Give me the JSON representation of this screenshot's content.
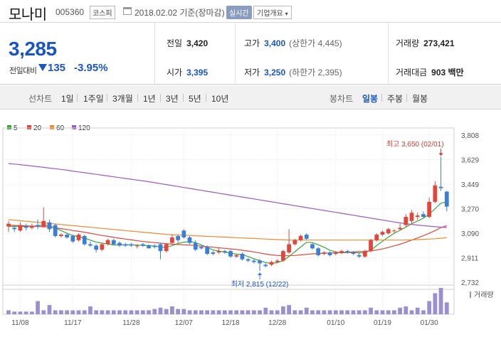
{
  "header": {
    "name": "모나미",
    "code": "005360",
    "market": "코스피",
    "date_text": "2018.02.02 기준(장마감)",
    "realtime_label": "실시간",
    "overview_label": "기업개요"
  },
  "price": {
    "current": "3,285",
    "change_label": "전일대비",
    "change_value": "135",
    "change_pct": "-3.95%"
  },
  "stats": {
    "prev_label": "전일",
    "prev_value": "3,420",
    "high_label": "고가",
    "high_value": "3,400",
    "upper_limit": "(상한가 4,445)",
    "volume_label": "거래량",
    "volume_value": "273,421",
    "open_label": "시가",
    "open_value": "3,395",
    "low_label": "저가",
    "low_value": "3,250",
    "lower_limit": "(하한가 2,395)",
    "amount_label": "거래대금",
    "amount_value": "903 백만"
  },
  "tabs": {
    "line_chart": "선차트",
    "periods": [
      "1일",
      "1주일",
      "3개월",
      "1년",
      "3년",
      "5년",
      "10년"
    ],
    "candle_chart": "봉차트",
    "candle_periods": [
      "일봉",
      "주봉",
      "월봉"
    ],
    "active_candle": "일봉"
  },
  "legend": [
    {
      "label": "5",
      "color": "#3aa53a"
    },
    {
      "label": "20",
      "color": "#e0463c"
    },
    {
      "label": "60",
      "color": "#f08a30"
    },
    {
      "label": "120",
      "color": "#9b59c9"
    }
  ],
  "chart_data": {
    "type": "candlestick",
    "yticks": [
      "3,808",
      "3,629",
      "3,449",
      "3,270",
      "3,090",
      "2,911",
      "2,732"
    ],
    "ylim": [
      2732,
      3808
    ],
    "xticks": [
      "11/08",
      "11/17",
      "11/28",
      "12/07",
      "12/18",
      "12/28",
      "01/10",
      "01/19",
      "01/30"
    ],
    "high_annotation": "최고 3,650 (02/01)",
    "low_annotation": "최저 2,815 (12/22)",
    "volume_label": "거래량",
    "up_color": "#e0463c",
    "down_color": "#3a7fd5",
    "candles": [
      [
        3140,
        3160,
        3180,
        3100
      ],
      [
        3130,
        3120,
        3150,
        3100
      ],
      [
        3110,
        3150,
        3170,
        3100
      ],
      [
        3140,
        3130,
        3160,
        3110
      ],
      [
        3130,
        3145,
        3160,
        3120
      ],
      [
        3150,
        3140,
        3190,
        3120
      ],
      [
        3140,
        3180,
        3280,
        3130
      ],
      [
        3170,
        3120,
        3190,
        3100
      ],
      [
        3150,
        3070,
        3160,
        3060
      ],
      [
        3070,
        3080,
        3090,
        3060
      ],
      [
        3080,
        3060,
        3090,
        3050
      ],
      [
        3070,
        3030,
        3080,
        3020
      ],
      [
        3040,
        3080,
        3090,
        3030
      ],
      [
        3070,
        3010,
        3080,
        3000
      ],
      [
        3010,
        3000,
        3030,
        2990
      ],
      [
        3000,
        2970,
        3010,
        2950
      ],
      [
        2970,
        3010,
        3020,
        2960
      ],
      [
        3010,
        3040,
        3050,
        3000
      ],
      [
        3040,
        3010,
        3050,
        3000
      ],
      [
        3020,
        3000,
        3030,
        2990
      ],
      [
        3010,
        3000,
        3020,
        2990
      ],
      [
        3010,
        3000,
        3020,
        2990
      ],
      [
        3000,
        3000,
        3010,
        2980
      ],
      [
        3010,
        3000,
        3020,
        2990
      ],
      [
        3000,
        2980,
        3010,
        2980
      ],
      [
        3000,
        2990,
        3010,
        2980
      ],
      [
        3010,
        2960,
        3020,
        2900
      ],
      [
        2960,
        3010,
        3020,
        2950
      ],
      [
        3020,
        3060,
        3080,
        3010
      ],
      [
        3070,
        3040,
        3080,
        3020
      ],
      [
        3110,
        3060,
        3120,
        3050
      ],
      [
        3060,
        3020,
        3070,
        3010
      ],
      [
        3020,
        2970,
        3040,
        2960
      ],
      [
        2990,
        2980,
        3000,
        2970
      ],
      [
        2990,
        2940,
        3000,
        2930
      ],
      [
        2950,
        2940,
        2960,
        2930
      ],
      [
        2950,
        2960,
        2980,
        2940
      ],
      [
        2960,
        2950,
        2970,
        2940
      ],
      [
        2960,
        2920,
        2970,
        2910
      ],
      [
        2920,
        2930,
        2940,
        2910
      ],
      [
        2940,
        2900,
        2950,
        2890
      ],
      [
        2900,
        2890,
        2910,
        2880
      ],
      [
        2890,
        2880,
        2900,
        2870
      ],
      [
        2890,
        2870,
        2900,
        2815
      ],
      [
        2860,
        2850,
        2870,
        2840
      ],
      [
        2860,
        2880,
        2890,
        2850
      ],
      [
        2880,
        2890,
        2900,
        2870
      ],
      [
        2890,
        2960,
        2970,
        2880
      ],
      [
        2950,
        3010,
        3120,
        2940
      ],
      [
        3010,
        3040,
        3050,
        3000
      ],
      [
        3040,
        3070,
        3080,
        3030
      ],
      [
        3080,
        3050,
        3090,
        3040
      ],
      [
        3010,
        2980,
        3020,
        2970
      ],
      [
        2980,
        2930,
        2990,
        2920
      ],
      [
        2940,
        2950,
        2960,
        2930
      ],
      [
        2950,
        2930,
        2960,
        2920
      ],
      [
        2940,
        2950,
        2960,
        2930
      ],
      [
        2950,
        2960,
        2970,
        2940
      ],
      [
        2960,
        2950,
        2970,
        2940
      ],
      [
        2950,
        2940,
        2960,
        2930
      ],
      [
        2930,
        2920,
        2950,
        2910
      ],
      [
        2920,
        2960,
        2970,
        2910
      ],
      [
        2960,
        3040,
        3050,
        2950
      ],
      [
        3040,
        3080,
        3090,
        3030
      ],
      [
        3080,
        3100,
        3110,
        3070
      ],
      [
        3090,
        3120,
        3130,
        3080
      ],
      [
        3110,
        3110,
        3120,
        3090
      ],
      [
        3120,
        3130,
        3160,
        3110
      ],
      [
        3150,
        3210,
        3230,
        3140
      ],
      [
        3180,
        3240,
        3260,
        3160
      ],
      [
        3210,
        3220,
        3240,
        3190
      ],
      [
        3230,
        3210,
        3250,
        3200
      ],
      [
        3210,
        3320,
        3350,
        3200
      ],
      [
        3320,
        3440,
        3470,
        3310
      ],
      [
        3430,
        3420,
        3650,
        3400
      ],
      [
        3395,
        3285,
        3400,
        3250
      ]
    ],
    "volume": [
      3,
      2,
      2,
      2,
      2,
      10,
      3,
      7,
      3,
      3,
      3,
      3,
      3,
      3,
      6,
      3,
      3,
      3,
      3,
      3,
      3,
      3,
      3,
      3,
      3,
      4,
      5,
      4,
      6,
      4,
      4,
      3,
      3,
      3,
      3,
      3,
      3,
      3,
      3,
      3,
      3,
      3,
      3,
      3,
      5,
      3,
      3,
      6,
      7,
      3,
      3,
      5,
      3,
      3,
      3,
      3,
      3,
      3,
      3,
      3,
      3,
      3,
      5,
      3,
      3,
      3,
      3,
      5,
      6,
      3,
      5,
      3,
      10,
      16,
      20,
      9
    ],
    "ma": [
      {
        "name": "5",
        "color": "#3aa53a",
        "values": [
          3140,
          3140,
          3140,
          3140,
          3140,
          3146,
          3151,
          3144,
          3128,
          3110,
          3090,
          3073,
          3065,
          3056,
          3040,
          3025,
          3018,
          3012,
          3005,
          3004,
          3007,
          3006,
          3004,
          3001,
          3000,
          2996,
          2990,
          2988,
          3000,
          3016,
          3025,
          3030,
          3022,
          3005,
          2986,
          2968,
          2960,
          2952,
          2944,
          2938,
          2934,
          2920,
          2904,
          2890,
          2876,
          2870,
          2876,
          2890,
          2920,
          2955,
          2990,
          3024,
          3022,
          3006,
          2988,
          2966,
          2954,
          2946,
          2950,
          2950,
          2946,
          2948,
          2966,
          3000,
          3032,
          3062,
          3090,
          3112,
          3136,
          3160,
          3180,
          3200,
          3230,
          3270,
          3310,
          3320
        ]
      },
      {
        "name": "20",
        "color": "#e0463c",
        "values": [
          3150,
          3148,
          3146,
          3144,
          3142,
          3140,
          3138,
          3136,
          3130,
          3124,
          3118,
          3110,
          3104,
          3098,
          3090,
          3082,
          3074,
          3068,
          3060,
          3054,
          3048,
          3042,
          3036,
          3030,
          3026,
          3022,
          3018,
          3014,
          3010,
          3008,
          3006,
          3004,
          3000,
          2996,
          2992,
          2988,
          2984,
          2980,
          2976,
          2972,
          2966,
          2960,
          2954,
          2946,
          2938,
          2932,
          2928,
          2926,
          2926,
          2928,
          2932,
          2936,
          2940,
          2942,
          2944,
          2946,
          2948,
          2950,
          2952,
          2954,
          2956,
          2958,
          2962,
          2968,
          2976,
          2986,
          2998,
          3010,
          3024,
          3040,
          3056,
          3072,
          3090,
          3110,
          3132,
          3145
        ]
      },
      {
        "name": "60",
        "color": "#f08a30",
        "values": [
          3190,
          3186,
          3182,
          3178,
          3174,
          3170,
          3166,
          3162,
          3158,
          3154,
          3150,
          3146,
          3142,
          3138,
          3134,
          3130,
          3126,
          3122,
          3118,
          3114,
          3110,
          3106,
          3102,
          3098,
          3094,
          3090,
          3086,
          3082,
          3080,
          3078,
          3076,
          3074,
          3072,
          3070,
          3068,
          3066,
          3064,
          3062,
          3060,
          3058,
          3056,
          3054,
          3052,
          3050,
          3048,
          3046,
          3044,
          3042,
          3040,
          3040,
          3040,
          3040,
          3040,
          3040,
          3040,
          3040,
          3040,
          3040,
          3040,
          3040,
          3040,
          3040,
          3040,
          3040,
          3040,
          3040,
          3040,
          3040,
          3040,
          3042,
          3044,
          3046,
          3048,
          3050,
          3054,
          3058
        ]
      },
      {
        "name": "120",
        "color": "#9b59c9",
        "values": [
          3600,
          3596,
          3592,
          3587,
          3582,
          3577,
          3572,
          3567,
          3562,
          3557,
          3551,
          3545,
          3539,
          3533,
          3527,
          3521,
          3515,
          3509,
          3503,
          3497,
          3491,
          3485,
          3479,
          3473,
          3467,
          3460,
          3453,
          3446,
          3439,
          3432,
          3425,
          3418,
          3411,
          3404,
          3397,
          3390,
          3383,
          3376,
          3369,
          3362,
          3355,
          3348,
          3341,
          3334,
          3327,
          3320,
          3313,
          3306,
          3299,
          3292,
          3285,
          3278,
          3271,
          3264,
          3257,
          3250,
          3243,
          3236,
          3229,
          3222,
          3215,
          3208,
          3201,
          3194,
          3187,
          3180,
          3173,
          3166,
          3160,
          3155,
          3150,
          3146,
          3142,
          3138,
          3135,
          3132
        ]
      }
    ]
  }
}
